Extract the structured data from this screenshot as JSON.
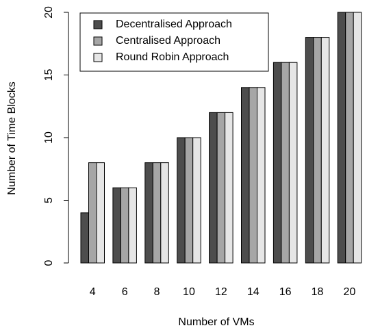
{
  "chart_data": {
    "type": "bar",
    "xlabel": "Number of VMs",
    "ylabel": "Number of Time Blocks",
    "categories": [
      "4",
      "6",
      "8",
      "10",
      "12",
      "14",
      "16",
      "18",
      "20"
    ],
    "ylim": [
      0,
      20
    ],
    "yticks": [
      "0",
      "5",
      "10",
      "15",
      "20"
    ],
    "grid": false,
    "legend_position": "top-left",
    "series": [
      {
        "name": "Decentralised Approach",
        "color": "#4d4d4d",
        "values": [
          4,
          6,
          8,
          10,
          12,
          14,
          16,
          18,
          20
        ]
      },
      {
        "name": "Centralised Approach",
        "color": "#a6a6a6",
        "values": [
          8,
          6,
          8,
          10,
          12,
          14,
          16,
          18,
          20
        ]
      },
      {
        "name": "Round Robin Approach",
        "color": "#e6e6e6",
        "values": [
          8,
          6,
          8,
          10,
          12,
          14,
          16,
          18,
          20
        ]
      }
    ]
  }
}
